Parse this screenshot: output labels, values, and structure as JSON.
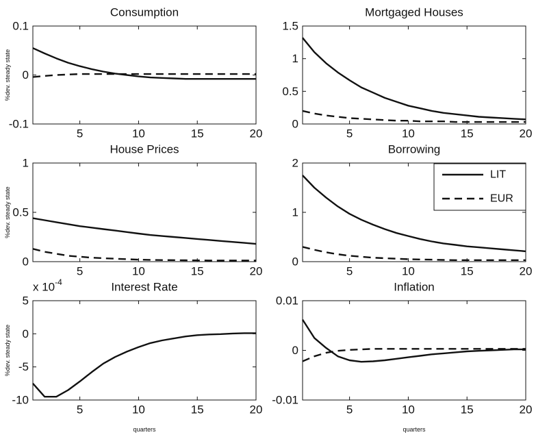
{
  "figure": {
    "legend": {
      "position": "top-right of Borrowing panel",
      "entries": [
        "LIT",
        "EUR"
      ]
    }
  },
  "chart_data": [
    {
      "type": "line",
      "title": "Consumption",
      "ylabel": "%dev. steady state",
      "xlabel": "",
      "xlim": [
        1,
        20
      ],
      "ylim": [
        -0.1,
        0.1
      ],
      "xticks": [
        "5",
        "10",
        "15",
        "20"
      ],
      "yticks": [
        "0.1",
        "0",
        "-0.1"
      ],
      "ytick_values": [
        0.1,
        0,
        -0.1
      ],
      "x": [
        1,
        2,
        3,
        4,
        5,
        6,
        7,
        8,
        9,
        10,
        11,
        12,
        13,
        14,
        15,
        16,
        17,
        18,
        19,
        20
      ],
      "series": [
        {
          "name": "LIT",
          "style": "solid",
          "values": [
            0.055,
            0.044,
            0.034,
            0.025,
            0.018,
            0.012,
            0.007,
            0.003,
            0.0,
            -0.003,
            -0.005,
            -0.006,
            -0.007,
            -0.008,
            -0.008,
            -0.008,
            -0.008,
            -0.008,
            -0.008,
            -0.008
          ]
        },
        {
          "name": "EUR",
          "style": "dashed",
          "values": [
            -0.004,
            -0.002,
            0.0,
            0.001,
            0.002,
            0.002,
            0.002,
            0.002,
            0.002,
            0.002,
            0.002,
            0.002,
            0.002,
            0.002,
            0.002,
            0.002,
            0.002,
            0.002,
            0.002,
            0.002
          ]
        }
      ]
    },
    {
      "type": "line",
      "title": "Mortgaged Houses",
      "ylabel": "",
      "xlabel": "",
      "xlim": [
        1,
        20
      ],
      "ylim": [
        0,
        1.5
      ],
      "xticks": [
        "5",
        "10",
        "15",
        "20"
      ],
      "yticks": [
        "1.5",
        "1",
        "0.5",
        "0"
      ],
      "ytick_values": [
        1.5,
        1,
        0.5,
        0
      ],
      "x": [
        1,
        2,
        3,
        4,
        5,
        6,
        7,
        8,
        9,
        10,
        11,
        12,
        13,
        14,
        15,
        16,
        17,
        18,
        19,
        20
      ],
      "series": [
        {
          "name": "LIT",
          "style": "solid",
          "values": [
            1.32,
            1.1,
            0.93,
            0.79,
            0.67,
            0.56,
            0.48,
            0.4,
            0.34,
            0.28,
            0.24,
            0.2,
            0.17,
            0.15,
            0.13,
            0.11,
            0.1,
            0.09,
            0.08,
            0.07
          ]
        },
        {
          "name": "EUR",
          "style": "dashed",
          "values": [
            0.2,
            0.16,
            0.13,
            0.11,
            0.09,
            0.08,
            0.07,
            0.06,
            0.05,
            0.05,
            0.04,
            0.04,
            0.04,
            0.03,
            0.03,
            0.03,
            0.03,
            0.03,
            0.03,
            0.03
          ]
        }
      ]
    },
    {
      "type": "line",
      "title": "House Prices",
      "ylabel": "%dev. steady state",
      "xlabel": "",
      "xlim": [
        1,
        20
      ],
      "ylim": [
        0,
        1
      ],
      "xticks": [
        "5",
        "10",
        "15",
        "20"
      ],
      "yticks": [
        "1",
        "0.5",
        "0"
      ],
      "ytick_values": [
        1,
        0.5,
        0
      ],
      "x": [
        1,
        2,
        3,
        4,
        5,
        6,
        7,
        8,
        9,
        10,
        11,
        12,
        13,
        14,
        15,
        16,
        17,
        18,
        19,
        20
      ],
      "series": [
        {
          "name": "LIT",
          "style": "solid",
          "values": [
            0.44,
            0.42,
            0.4,
            0.38,
            0.36,
            0.345,
            0.33,
            0.315,
            0.3,
            0.285,
            0.27,
            0.26,
            0.25,
            0.24,
            0.23,
            0.22,
            0.21,
            0.2,
            0.19,
            0.18
          ]
        },
        {
          "name": "EUR",
          "style": "dashed",
          "values": [
            0.13,
            0.1,
            0.08,
            0.06,
            0.05,
            0.04,
            0.035,
            0.03,
            0.025,
            0.02,
            0.018,
            0.016,
            0.015,
            0.014,
            0.013,
            0.012,
            0.012,
            0.012,
            0.012,
            0.012
          ]
        }
      ]
    },
    {
      "type": "line",
      "title": "Borrowing",
      "ylabel": "",
      "xlabel": "",
      "xlim": [
        1,
        20
      ],
      "ylim": [
        0,
        2
      ],
      "xticks": [
        "5",
        "10",
        "15",
        "20"
      ],
      "yticks": [
        "2",
        "1",
        "0"
      ],
      "ytick_values": [
        2,
        1,
        0
      ],
      "x": [
        1,
        2,
        3,
        4,
        5,
        6,
        7,
        8,
        9,
        10,
        11,
        12,
        13,
        14,
        15,
        16,
        17,
        18,
        19,
        20
      ],
      "series": [
        {
          "name": "LIT",
          "style": "solid",
          "values": [
            1.75,
            1.5,
            1.3,
            1.12,
            0.97,
            0.85,
            0.75,
            0.66,
            0.58,
            0.52,
            0.46,
            0.41,
            0.37,
            0.34,
            0.31,
            0.29,
            0.27,
            0.25,
            0.23,
            0.21
          ]
        },
        {
          "name": "EUR",
          "style": "dashed",
          "values": [
            0.3,
            0.24,
            0.19,
            0.15,
            0.12,
            0.1,
            0.08,
            0.07,
            0.06,
            0.05,
            0.045,
            0.04,
            0.035,
            0.03,
            0.03,
            0.03,
            0.03,
            0.03,
            0.03,
            0.03
          ]
        }
      ]
    },
    {
      "type": "line",
      "title": "Interest Rate",
      "scale_label": "x 10",
      "scale_exponent": "-4",
      "ylabel": "%dev. steady state",
      "xlabel": "quarters",
      "xlim": [
        1,
        20
      ],
      "ylim": [
        -10,
        5
      ],
      "xticks": [
        "5",
        "10",
        "15",
        "20"
      ],
      "yticks": [
        "5",
        "0",
        "-5",
        "-10"
      ],
      "ytick_values": [
        5,
        0,
        -5,
        -10
      ],
      "x": [
        1,
        2,
        3,
        4,
        5,
        6,
        7,
        8,
        9,
        10,
        11,
        12,
        13,
        14,
        15,
        16,
        17,
        18,
        19,
        20
      ],
      "series": [
        {
          "name": "LIT",
          "style": "solid",
          "values": [
            -7.5,
            -9.5,
            -9.5,
            -8.5,
            -7.2,
            -5.8,
            -4.5,
            -3.5,
            -2.7,
            -2.0,
            -1.4,
            -1.0,
            -0.7,
            -0.4,
            -0.2,
            -0.1,
            -0.05,
            0.05,
            0.1,
            0.1
          ]
        }
      ]
    },
    {
      "type": "line",
      "title": "Inflation",
      "ylabel": "",
      "xlabel": "quarters",
      "xlim": [
        1,
        20
      ],
      "ylim": [
        -0.01,
        0.01
      ],
      "xticks": [
        "5",
        "10",
        "15",
        "20"
      ],
      "yticks": [
        "0.01",
        "0",
        "-0.01"
      ],
      "ytick_values": [
        0.01,
        0,
        -0.01
      ],
      "x": [
        1,
        2,
        3,
        4,
        5,
        6,
        7,
        8,
        9,
        10,
        11,
        12,
        13,
        14,
        15,
        16,
        17,
        18,
        19,
        20
      ],
      "series": [
        {
          "name": "LIT",
          "style": "solid",
          "values": [
            0.0062,
            0.0025,
            0.0005,
            -0.0012,
            -0.002,
            -0.0023,
            -0.0022,
            -0.002,
            -0.0017,
            -0.0014,
            -0.0011,
            -0.0008,
            -0.0006,
            -0.0004,
            -0.0002,
            -0.0001,
            0.0,
            0.0001,
            0.0002,
            0.0002
          ]
        },
        {
          "name": "EUR",
          "style": "dashed",
          "values": [
            -0.0022,
            -0.0012,
            -0.0005,
            -0.0001,
            0.0001,
            0.0002,
            0.0003,
            0.0003,
            0.0003,
            0.0003,
            0.0003,
            0.0003,
            0.0003,
            0.0003,
            0.0003,
            0.0003,
            0.0003,
            0.0003,
            0.0003,
            0.0003
          ]
        }
      ]
    }
  ]
}
